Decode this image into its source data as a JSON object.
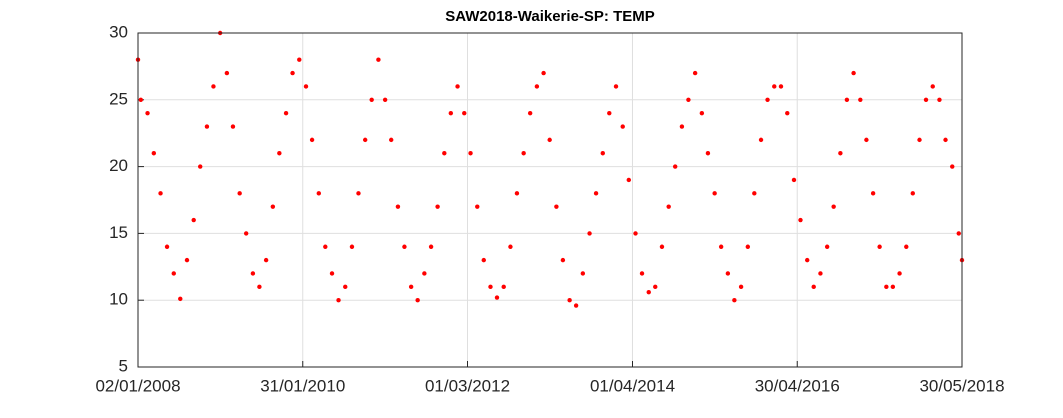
{
  "chart_data": {
    "type": "scatter",
    "title": "SAW2018-Waikerie-SP: TEMP",
    "color": "#ff0000",
    "grid": true,
    "xlim": [
      "02/01/2008",
      "30/05/2018"
    ],
    "xticks": [
      "02/01/2008",
      "31/01/2010",
      "01/03/2012",
      "01/04/2014",
      "30/04/2016",
      "30/05/2018"
    ],
    "ylim": [
      5,
      30
    ],
    "yticks": [
      5,
      10,
      15,
      20,
      25,
      30
    ],
    "x": [
      "02/01/2008",
      "15/01/2008",
      "15/02/2008",
      "15/03/2008",
      "15/04/2008",
      "15/05/2008",
      "15/06/2008",
      "15/07/2008",
      "15/08/2008",
      "15/09/2008",
      "15/10/2008",
      "15/11/2008",
      "15/12/2008",
      "15/01/2009",
      "15/02/2009",
      "15/03/2009",
      "15/04/2009",
      "15/05/2009",
      "15/06/2009",
      "15/07/2009",
      "15/08/2009",
      "15/09/2009",
      "15/10/2009",
      "15/11/2009",
      "15/12/2009",
      "15/01/2010",
      "15/02/2010",
      "15/03/2010",
      "15/04/2010",
      "15/05/2010",
      "15/06/2010",
      "15/07/2010",
      "15/08/2010",
      "15/09/2010",
      "15/10/2010",
      "15/11/2010",
      "15/12/2010",
      "15/01/2011",
      "15/02/2011",
      "15/03/2011",
      "15/04/2011",
      "15/05/2011",
      "15/06/2011",
      "15/07/2011",
      "15/08/2011",
      "15/09/2011",
      "15/10/2011",
      "15/11/2011",
      "15/12/2011",
      "15/01/2012",
      "15/02/2012",
      "15/03/2012",
      "15/04/2012",
      "15/05/2012",
      "15/06/2012",
      "15/07/2012",
      "15/08/2012",
      "15/09/2012",
      "15/10/2012",
      "15/11/2012",
      "15/12/2012",
      "15/01/2013",
      "15/02/2013",
      "15/03/2013",
      "15/04/2013",
      "15/05/2013",
      "15/06/2013",
      "15/07/2013",
      "15/08/2013",
      "15/09/2013",
      "15/10/2013",
      "15/11/2013",
      "15/12/2013",
      "15/01/2014",
      "15/02/2014",
      "15/03/2014",
      "15/04/2014",
      "15/05/2014",
      "15/06/2014",
      "15/07/2014",
      "15/08/2014",
      "15/09/2014",
      "15/10/2014",
      "15/11/2014",
      "15/12/2014",
      "15/01/2015",
      "15/02/2015",
      "15/03/2015",
      "15/04/2015",
      "15/05/2015",
      "15/06/2015",
      "15/07/2015",
      "15/08/2015",
      "15/09/2015",
      "15/10/2015",
      "15/11/2015",
      "15/12/2015",
      "15/01/2016",
      "15/02/2016",
      "15/03/2016",
      "15/04/2016",
      "15/05/2016",
      "15/06/2016",
      "15/07/2016",
      "15/08/2016",
      "15/09/2016",
      "15/10/2016",
      "15/11/2016",
      "15/12/2016",
      "15/01/2017",
      "15/02/2017",
      "15/03/2017",
      "15/04/2017",
      "15/05/2017",
      "15/06/2017",
      "15/07/2017",
      "15/08/2017",
      "15/09/2017",
      "15/10/2017",
      "15/11/2017",
      "15/12/2017",
      "15/01/2018",
      "15/02/2018",
      "15/03/2018",
      "15/04/2018",
      "15/05/2018",
      "30/05/2018"
    ],
    "values": [
      28,
      25,
      24,
      21,
      18,
      14,
      12,
      10.1,
      13,
      16,
      20,
      23,
      26,
      30,
      27,
      23,
      18,
      15,
      12,
      11,
      13,
      17,
      21,
      24,
      27,
      28,
      26,
      22,
      18,
      14,
      12,
      10,
      11,
      14,
      18,
      22,
      25,
      28,
      25,
      22,
      17,
      14,
      11,
      10,
      12,
      14,
      17,
      21,
      24,
      26,
      24,
      21,
      17,
      13,
      11,
      10.2,
      11,
      14,
      18,
      21,
      24,
      26,
      27,
      22,
      17,
      13,
      10,
      9.6,
      12,
      15,
      18,
      21,
      24,
      26,
      23,
      19,
      15,
      12,
      10.6,
      11,
      14,
      17,
      20,
      23,
      25,
      27,
      24,
      21,
      18,
      14,
      12,
      10,
      11,
      14,
      18,
      22,
      25,
      26,
      26,
      24,
      19,
      16,
      13,
      11,
      12,
      14,
      17,
      21,
      25,
      27,
      25,
      22,
      18,
      14,
      11,
      11,
      12,
      14,
      18,
      22,
      25,
      26,
      25,
      22,
      20,
      15,
      13
    ]
  }
}
